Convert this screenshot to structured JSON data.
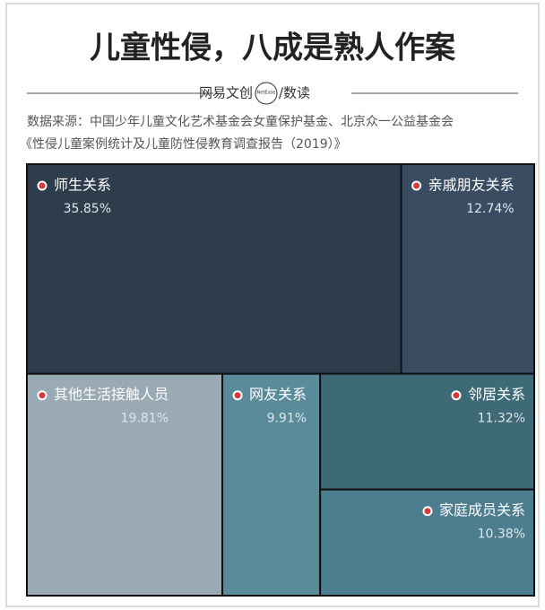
{
  "chart_data": {
    "type": "treemap",
    "title": "儿童性侵，八成是熟人作案",
    "brand": "网易文创",
    "logo": "NetEase",
    "section": "/数读",
    "source": [
      "数据来源：中国少年儿童文化艺术基金会女童保护基金、北京众一公益基金会",
      "《性侵儿童案例统计及儿童防性侵教育调查报告（2019）》"
    ],
    "categories": [
      "师生关系",
      "亲戚朋友关系",
      "其他生活接触人员",
      "网友关系",
      "邻居关系",
      "家庭成员关系"
    ],
    "values": [
      35.85,
      12.74,
      19.81,
      9.91,
      11.32,
      10.38
    ],
    "value_labels": [
      "35.85%",
      "12.74%",
      "19.81%",
      "9.91%",
      "11.32%",
      "10.38%"
    ],
    "colors": [
      "#2e3d4b",
      "#3a4c61",
      "#9aaab4",
      "#5a8b9b",
      "#3e6977",
      "#4d7e8f"
    ]
  }
}
